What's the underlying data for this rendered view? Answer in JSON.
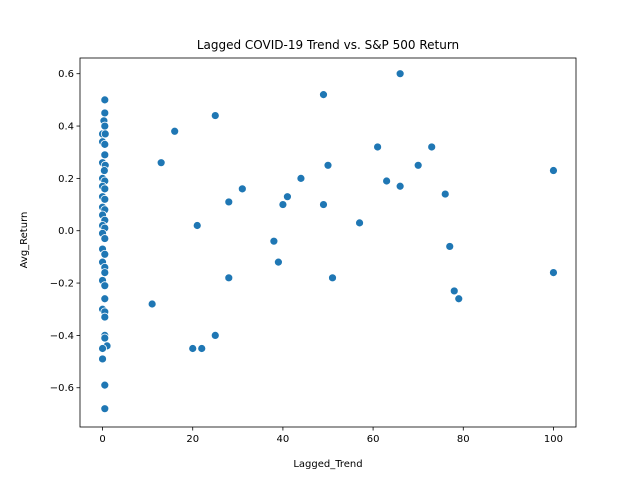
{
  "chart_data": {
    "type": "scatter",
    "title": "Lagged COVID-19 Trend vs. S&P 500 Return",
    "xlabel": "Lagged_Trend",
    "ylabel": "Avg_Return",
    "xlim": [
      -5,
      105
    ],
    "ylim": [
      -0.75,
      0.66
    ],
    "xticks": [
      0,
      20,
      40,
      60,
      80,
      100
    ],
    "yticks": [
      -0.6,
      -0.4,
      -0.2,
      0.0,
      0.2,
      0.4,
      0.6
    ],
    "xtick_labels": [
      "0",
      "20",
      "40",
      "60",
      "80",
      "100"
    ],
    "ytick_labels": [
      "−0.6",
      "−0.4",
      "−0.2",
      "0.0",
      "0.2",
      "0.4",
      "0.6"
    ],
    "grid": false,
    "marker_color": "#1f77b4",
    "points": [
      {
        "x": 0.5,
        "y": 0.5
      },
      {
        "x": 0.5,
        "y": 0.45
      },
      {
        "x": 0.3,
        "y": 0.42
      },
      {
        "x": 0.5,
        "y": 0.4
      },
      {
        "x": 0.0,
        "y": 0.37
      },
      {
        "x": 0.6,
        "y": 0.37
      },
      {
        "x": 0.0,
        "y": 0.34
      },
      {
        "x": 0.5,
        "y": 0.33
      },
      {
        "x": 0.5,
        "y": 0.29
      },
      {
        "x": 0.0,
        "y": 0.26
      },
      {
        "x": 0.6,
        "y": 0.25
      },
      {
        "x": 0.4,
        "y": 0.23
      },
      {
        "x": 0.0,
        "y": 0.2
      },
      {
        "x": 0.5,
        "y": 0.19
      },
      {
        "x": 0.0,
        "y": 0.17
      },
      {
        "x": 0.5,
        "y": 0.16
      },
      {
        "x": 0.0,
        "y": 0.13
      },
      {
        "x": 0.5,
        "y": 0.12
      },
      {
        "x": 0.0,
        "y": 0.09
      },
      {
        "x": 0.5,
        "y": 0.08
      },
      {
        "x": 0.0,
        "y": 0.06
      },
      {
        "x": 0.5,
        "y": 0.04
      },
      {
        "x": 0.0,
        "y": 0.02
      },
      {
        "x": 0.5,
        "y": 0.01
      },
      {
        "x": 0.0,
        "y": -0.01
      },
      {
        "x": 0.5,
        "y": -0.03
      },
      {
        "x": 0.0,
        "y": -0.07
      },
      {
        "x": 0.5,
        "y": -0.09
      },
      {
        "x": 0.0,
        "y": -0.12
      },
      {
        "x": 0.5,
        "y": -0.14
      },
      {
        "x": 0.5,
        "y": -0.16
      },
      {
        "x": 0.0,
        "y": -0.19
      },
      {
        "x": 0.5,
        "y": -0.21
      },
      {
        "x": 0.5,
        "y": -0.26
      },
      {
        "x": 0.0,
        "y": -0.3
      },
      {
        "x": 0.5,
        "y": -0.31
      },
      {
        "x": 0.5,
        "y": -0.33
      },
      {
        "x": 0.5,
        "y": -0.4
      },
      {
        "x": 0.5,
        "y": -0.41
      },
      {
        "x": 1.0,
        "y": -0.44
      },
      {
        "x": 0.0,
        "y": -0.45
      },
      {
        "x": 0.0,
        "y": -0.49
      },
      {
        "x": 0.5,
        "y": -0.59
      },
      {
        "x": 0.5,
        "y": -0.68
      },
      {
        "x": 11,
        "y": -0.28
      },
      {
        "x": 13,
        "y": 0.26
      },
      {
        "x": 16,
        "y": 0.38
      },
      {
        "x": 20,
        "y": -0.45
      },
      {
        "x": 21,
        "y": 0.02
      },
      {
        "x": 22,
        "y": -0.45
      },
      {
        "x": 25,
        "y": 0.44
      },
      {
        "x": 25,
        "y": -0.4
      },
      {
        "x": 28,
        "y": 0.11
      },
      {
        "x": 28,
        "y": -0.18
      },
      {
        "x": 31,
        "y": 0.16
      },
      {
        "x": 38,
        "y": -0.04
      },
      {
        "x": 39,
        "y": -0.12
      },
      {
        "x": 40,
        "y": 0.1
      },
      {
        "x": 41,
        "y": 0.13
      },
      {
        "x": 44,
        "y": 0.2
      },
      {
        "x": 49,
        "y": 0.52
      },
      {
        "x": 49,
        "y": 0.1
      },
      {
        "x": 50,
        "y": 0.25
      },
      {
        "x": 51,
        "y": -0.18
      },
      {
        "x": 57,
        "y": 0.03
      },
      {
        "x": 61,
        "y": 0.32
      },
      {
        "x": 63,
        "y": 0.19
      },
      {
        "x": 66,
        "y": 0.6
      },
      {
        "x": 66,
        "y": 0.17
      },
      {
        "x": 70,
        "y": 0.25
      },
      {
        "x": 73,
        "y": 0.32
      },
      {
        "x": 76,
        "y": 0.14
      },
      {
        "x": 77,
        "y": -0.06
      },
      {
        "x": 78,
        "y": -0.23
      },
      {
        "x": 79,
        "y": -0.26
      },
      {
        "x": 100,
        "y": 0.23
      },
      {
        "x": 100,
        "y": -0.16
      }
    ]
  }
}
